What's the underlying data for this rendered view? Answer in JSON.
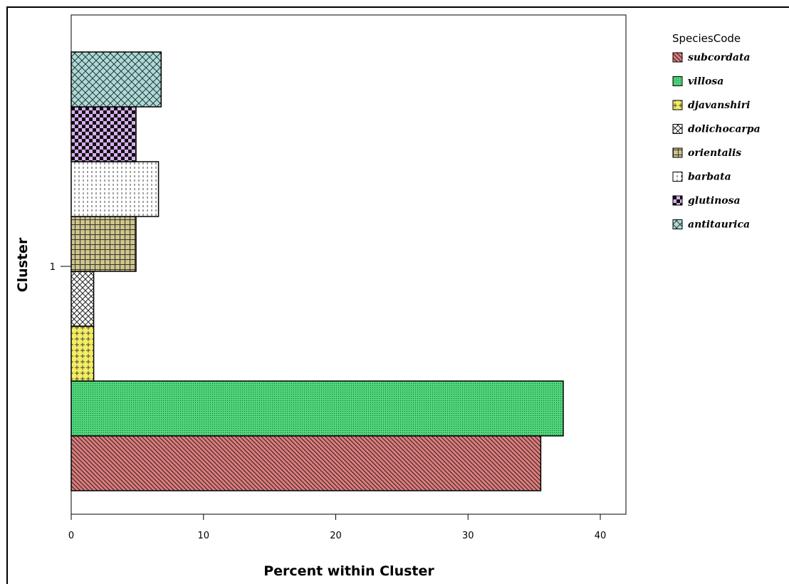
{
  "chart_data": {
    "type": "bar",
    "orientation": "horizontal",
    "title": "",
    "xlabel": "Percent within Cluster",
    "ylabel": "Cluster",
    "categories": [
      "1"
    ],
    "xlim": [
      0,
      42
    ],
    "xticks": [
      0,
      10,
      20,
      30,
      40
    ],
    "grid": false,
    "legend_title": "SpeciesCode",
    "legend_position": "right",
    "series": [
      {
        "name": "subcordata",
        "values": [
          35.5
        ],
        "color": "#e07b7b",
        "pattern": "diag-back"
      },
      {
        "name": "villosa",
        "values": [
          37.2
        ],
        "color": "#4fd67a",
        "pattern": "fine-dots"
      },
      {
        "name": "djavanshiri",
        "values": [
          1.7
        ],
        "color": "#f4ee60",
        "pattern": "cross-dots"
      },
      {
        "name": "dolichocarpa",
        "values": [
          1.7
        ],
        "color": "#ffffff",
        "pattern": "crosshatch"
      },
      {
        "name": "orientalis",
        "values": [
          4.9
        ],
        "color": "#cfc48a",
        "pattern": "grid"
      },
      {
        "name": "barbata",
        "values": [
          6.6
        ],
        "color": "#ffffff",
        "pattern": "vdash"
      },
      {
        "name": "glutinosa",
        "values": [
          4.9
        ],
        "color": "#d9aef0",
        "pattern": "checker"
      },
      {
        "name": "antitaurica",
        "values": [
          6.8
        ],
        "color": "#a9dcd9",
        "pattern": "crosshatch"
      }
    ]
  }
}
